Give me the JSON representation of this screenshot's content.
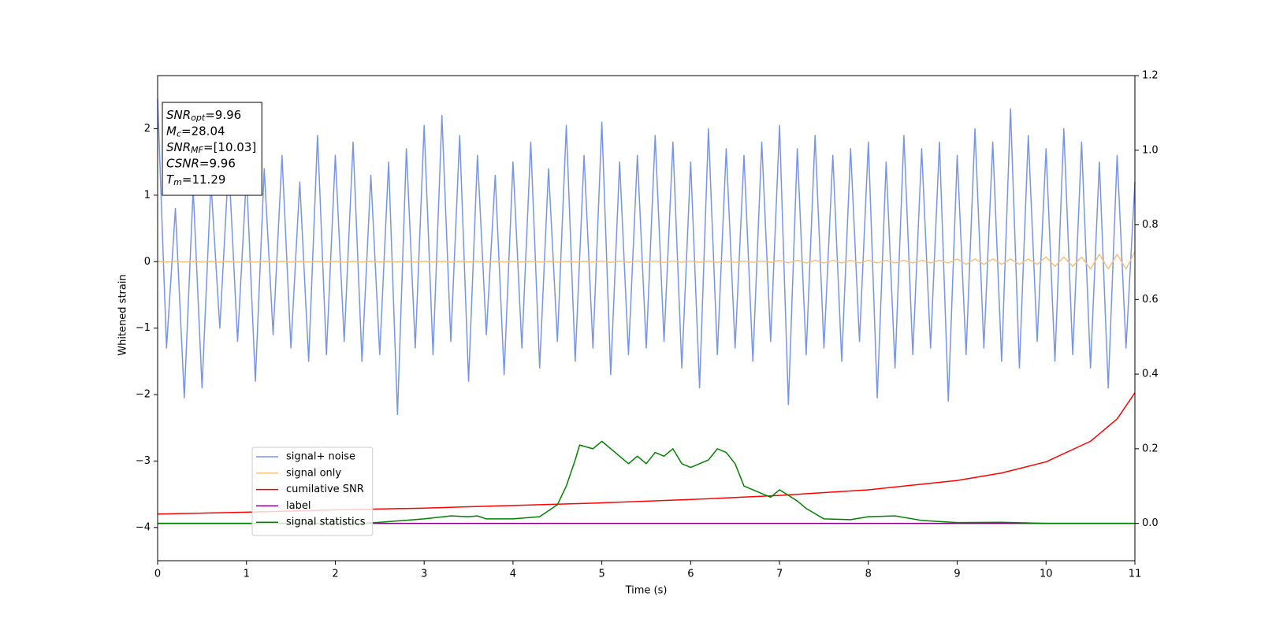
{
  "chart_data": {
    "type": "line",
    "xlabel": "Time (s)",
    "ylabel": "Whitened strain",
    "xlim": [
      0,
      11
    ],
    "xticks": [
      0,
      1,
      2,
      3,
      4,
      5,
      6,
      7,
      8,
      9,
      10,
      11
    ],
    "ylim": [
      -4.5,
      2.8
    ],
    "yticks": [
      {
        "value": -4,
        "label": "−4"
      },
      {
        "value": -3,
        "label": "−3"
      },
      {
        "value": -2,
        "label": "−2"
      },
      {
        "value": -1,
        "label": "−1"
      },
      0,
      1,
      2
    ],
    "y2lim": [
      -0.1,
      1.2
    ],
    "y2ticks": [
      {
        "value": 0,
        "label": "0.0"
      },
      {
        "value": 0.2,
        "label": "0.2"
      },
      {
        "value": 0.4,
        "label": "0.4"
      },
      {
        "value": 0.6,
        "label": "0.6"
      },
      {
        "value": 0.8,
        "label": "0.8"
      },
      {
        "value": 1.0,
        "label": "1.0"
      },
      {
        "value": 1.2,
        "label": "1.2"
      }
    ],
    "legend": "lower left",
    "annotations": [
      {
        "symbol": "SNR",
        "subscript": "opt",
        "text": "=9.96"
      },
      {
        "symbol": "M",
        "subscript": "c",
        "text": "=28.04"
      },
      {
        "symbol": "SNR",
        "subscript": "MF",
        "text": "=[10.03]"
      },
      {
        "symbol": "CSNR",
        "text": "=9.96"
      },
      {
        "symbol": "T",
        "subscript": "m",
        "text": "=11.29"
      }
    ],
    "series": [
      {
        "name": "signal+ noise",
        "color": "#7894e8",
        "axis": "y",
        "x": [
          0,
          0.1,
          0.2,
          0.3,
          0.4,
          0.5,
          0.6,
          0.7,
          0.8,
          0.9,
          1,
          1.1,
          1.2,
          1.3,
          1.4,
          1.5,
          1.6,
          1.7,
          1.8,
          1.9,
          2,
          2.1,
          2.2,
          2.3,
          2.4,
          2.5,
          2.6,
          2.7,
          2.8,
          2.9,
          3,
          3.1,
          3.2,
          3.3,
          3.4,
          3.5,
          3.6,
          3.7,
          3.8,
          3.9,
          4,
          4.1,
          4.2,
          4.3,
          4.4,
          4.5,
          4.6,
          4.7,
          4.8,
          4.9,
          5,
          5.1,
          5.2,
          5.3,
          5.4,
          5.5,
          5.6,
          5.7,
          5.8,
          5.9,
          6,
          6.1,
          6.2,
          6.3,
          6.4,
          6.5,
          6.6,
          6.7,
          6.8,
          6.9,
          7,
          7.1,
          7.2,
          7.3,
          7.4,
          7.5,
          7.6,
          7.7,
          7.8,
          7.9,
          8,
          8.1,
          8.2,
          8.3,
          8.4,
          8.5,
          8.6,
          8.7,
          8.8,
          8.9,
          9,
          9.1,
          9.2,
          9.3,
          9.4,
          9.5,
          9.6,
          9.7,
          9.8,
          9.9,
          10,
          10.1,
          10.2,
          10.3,
          10.4,
          10.5,
          10.6,
          10.7,
          10.8,
          10.9,
          11
        ],
        "values": [
          2.45,
          -1.3,
          0.8,
          -2.05,
          1.1,
          -1.9,
          1.2,
          -1.0,
          1.5,
          -1.2,
          1.3,
          -1.8,
          1.4,
          -1.1,
          1.6,
          -1.3,
          1.2,
          -1.5,
          1.9,
          -1.4,
          1.6,
          -1.2,
          1.8,
          -1.5,
          1.3,
          -1.4,
          1.5,
          -2.3,
          1.7,
          -1.3,
          2.05,
          -1.4,
          2.2,
          -1.2,
          1.9,
          -1.8,
          1.6,
          -1.1,
          1.3,
          -1.7,
          1.5,
          -1.3,
          1.8,
          -1.6,
          1.4,
          -1.2,
          2.05,
          -1.5,
          1.6,
          -1.3,
          2.1,
          -1.7,
          1.5,
          -1.4,
          1.6,
          -1.3,
          1.9,
          -1.2,
          1.8,
          -1.6,
          1.5,
          -1.9,
          2.0,
          -1.4,
          1.7,
          -1.3,
          1.6,
          -1.5,
          1.8,
          -1.2,
          2.05,
          -2.15,
          1.7,
          -1.4,
          1.9,
          -1.3,
          1.6,
          -1.5,
          1.7,
          -1.2,
          1.8,
          -2.05,
          1.5,
          -1.6,
          1.9,
          -1.4,
          1.7,
          -1.3,
          1.8,
          -2.1,
          1.6,
          -1.4,
          2.0,
          -1.3,
          1.8,
          -1.5,
          2.3,
          -1.6,
          1.9,
          -1.2,
          1.7,
          -1.5,
          2.0,
          -1.4,
          1.8,
          -1.6,
          1.5,
          -1.9,
          1.6,
          -1.3,
          1.2
        ]
      },
      {
        "name": "signal only",
        "color": "#f5c07a",
        "axis": "y",
        "x": [
          0,
          0.1,
          0.2,
          0.3,
          0.4,
          0.5,
          0.6,
          0.7,
          0.8,
          0.9,
          1,
          1.1,
          1.2,
          1.3,
          1.4,
          1.5,
          1.6,
          1.7,
          1.8,
          1.9,
          2,
          2.1,
          2.2,
          2.3,
          2.4,
          2.5,
          2.6,
          2.7,
          2.8,
          2.9,
          3,
          3.1,
          3.2,
          3.3,
          3.4,
          3.5,
          3.6,
          3.7,
          3.8,
          3.9,
          4,
          4.1,
          4.2,
          4.3,
          4.4,
          4.5,
          4.6,
          4.7,
          4.8,
          4.9,
          5,
          5.1,
          5.2,
          5.3,
          5.4,
          5.5,
          5.6,
          5.7,
          5.8,
          5.9,
          6,
          6.1,
          6.2,
          6.3,
          6.4,
          6.5,
          6.6,
          6.7,
          6.8,
          6.9,
          7,
          7.1,
          7.2,
          7.3,
          7.4,
          7.5,
          7.6,
          7.7,
          7.8,
          7.9,
          8,
          8.1,
          8.2,
          8.3,
          8.4,
          8.5,
          8.6,
          8.7,
          8.8,
          8.9,
          9,
          9.1,
          9.2,
          9.3,
          9.4,
          9.5,
          9.6,
          9.7,
          9.8,
          9.9,
          10,
          10.1,
          10.2,
          10.3,
          10.4,
          10.5,
          10.6,
          10.7,
          10.8,
          10.9,
          11
        ],
        "values": [
          0.005,
          -0.005,
          0.005,
          -0.005,
          0.005,
          -0.005,
          0.005,
          -0.005,
          0.005,
          -0.005,
          0.005,
          -0.005,
          0.005,
          -0.005,
          0.005,
          -0.005,
          0.005,
          -0.005,
          0.005,
          -0.005,
          0.005,
          -0.005,
          0.005,
          -0.005,
          0.005,
          -0.005,
          0.005,
          -0.005,
          0.005,
          -0.005,
          0.005,
          -0.005,
          0.005,
          -0.005,
          0.005,
          -0.005,
          0.005,
          -0.005,
          0.005,
          -0.005,
          0.005,
          -0.005,
          0.005,
          -0.005,
          0.005,
          -0.005,
          0.005,
          -0.005,
          0.005,
          -0.005,
          0.01,
          -0.01,
          0.01,
          -0.01,
          0.01,
          -0.01,
          0.01,
          -0.01,
          0.01,
          -0.01,
          0.01,
          -0.01,
          0.01,
          -0.01,
          0.01,
          -0.01,
          0.01,
          -0.01,
          0.01,
          -0.01,
          0.02,
          -0.02,
          0.02,
          -0.02,
          0.02,
          -0.02,
          0.02,
          -0.02,
          0.02,
          -0.02,
          0.02,
          -0.02,
          0.02,
          -0.02,
          0.02,
          -0.02,
          0.02,
          -0.02,
          0.02,
          -0.02,
          0.04,
          -0.04,
          0.04,
          -0.04,
          0.04,
          -0.04,
          0.04,
          -0.04,
          0.04,
          -0.04,
          0.07,
          -0.07,
          0.07,
          -0.07,
          0.07,
          -0.11,
          0.11,
          -0.11,
          0.11,
          -0.11,
          0.15
        ]
      },
      {
        "name": "cumilative SNR",
        "color": "#ff0000",
        "axis": "y2",
        "x": [
          0,
          1,
          2,
          3,
          4,
          5,
          6,
          7,
          8,
          9,
          9.5,
          10,
          10.5,
          10.8,
          11
        ],
        "values": [
          0.025,
          0.03,
          0.036,
          0.041,
          0.048,
          0.055,
          0.064,
          0.075,
          0.09,
          0.115,
          0.135,
          0.165,
          0.22,
          0.28,
          0.35
        ]
      },
      {
        "name": "label",
        "color": "#800080",
        "axis": "y2",
        "x": [
          0,
          11
        ],
        "values": [
          0,
          0
        ]
      },
      {
        "name": "signal statistics",
        "color": "#008000",
        "axis": "y2",
        "x": [
          0,
          2.3,
          2.5,
          3,
          3.3,
          3.5,
          3.6,
          3.7,
          4,
          4.3,
          4.5,
          4.6,
          4.7,
          4.75,
          4.9,
          5,
          5.1,
          5.2,
          5.3,
          5.4,
          5.5,
          5.6,
          5.7,
          5.8,
          5.9,
          6,
          6.2,
          6.3,
          6.4,
          6.5,
          6.6,
          6.8,
          6.9,
          7,
          7.2,
          7.3,
          7.5,
          7.8,
          8,
          8.3,
          8.6,
          9,
          9.5,
          10,
          11
        ],
        "values": [
          0,
          0,
          0.003,
          0.012,
          0.02,
          0.018,
          0.02,
          0.012,
          0.012,
          0.018,
          0.05,
          0.1,
          0.17,
          0.21,
          0.2,
          0.22,
          0.2,
          0.18,
          0.16,
          0.18,
          0.16,
          0.19,
          0.18,
          0.2,
          0.16,
          0.15,
          0.17,
          0.2,
          0.19,
          0.16,
          0.1,
          0.08,
          0.07,
          0.09,
          0.06,
          0.04,
          0.012,
          0.01,
          0.018,
          0.02,
          0.008,
          0.002,
          0.003,
          0,
          0
        ]
      }
    ]
  }
}
